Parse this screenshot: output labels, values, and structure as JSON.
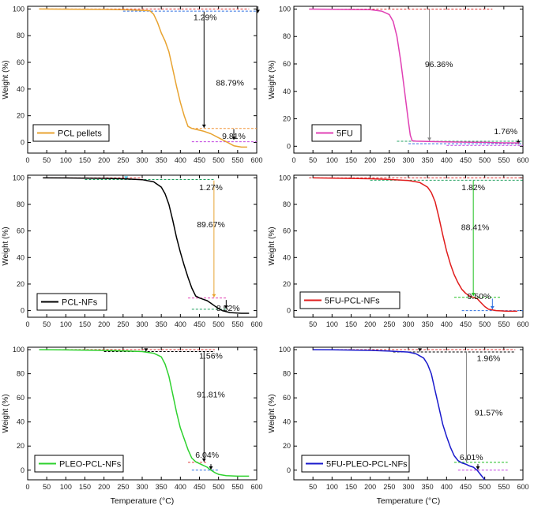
{
  "figure": {
    "ylabel": "Weight (%)",
    "xlabel": "Temperature (°C)"
  },
  "chart_data": [
    {
      "type": "line",
      "legend": "PCL pellets",
      "color": "#e8a330",
      "xlim": [
        0,
        600
      ],
      "ylim": [
        -8,
        102
      ],
      "xticks": [
        0,
        50,
        100,
        150,
        200,
        250,
        300,
        350,
        400,
        450,
        500,
        550,
        600
      ],
      "yticks": [
        0,
        20,
        40,
        60,
        80,
        100
      ],
      "ylabel": "Weight (%)",
      "xlabel": "",
      "x": [
        30,
        100,
        200,
        260,
        300,
        320,
        330,
        340,
        350,
        360,
        370,
        380,
        390,
        400,
        410,
        420,
        430,
        440,
        460,
        480,
        500,
        520,
        540,
        560,
        575
      ],
      "y": [
        100,
        99.9,
        99.7,
        99.4,
        99,
        98.7,
        96,
        90,
        82,
        76,
        68,
        55,
        42,
        30,
        20,
        12,
        10.5,
        9.8,
        8.5,
        6.5,
        3.5,
        0.5,
        -2.5,
        -3.5,
        -3.5
      ],
      "annotations": [
        {
          "text": "1.29%",
          "x": 465,
          "y": 94
        },
        {
          "text": "88.79%",
          "x": 530,
          "y": 45
        },
        {
          "text": "9.81%",
          "x": 540,
          "y": 5
        }
      ]
    },
    {
      "type": "line",
      "legend": "5FU",
      "color": "#e040b4",
      "xlim": [
        0,
        600
      ],
      "ylim": [
        -5,
        102
      ],
      "xticks": [
        0,
        50,
        100,
        150,
        200,
        250,
        300,
        350,
        400,
        450,
        500,
        550,
        600
      ],
      "yticks": [
        0,
        20,
        40,
        60,
        80,
        100
      ],
      "ylabel": "Weight (%)",
      "xlabel": "",
      "x": [
        40,
        100,
        200,
        230,
        250,
        260,
        270,
        280,
        290,
        300,
        305,
        310,
        320,
        350,
        400,
        450,
        500,
        550,
        590
      ],
      "y": [
        100,
        99.9,
        99.5,
        98.5,
        96,
        91,
        80,
        62,
        40,
        18,
        8,
        4,
        3.7,
        3.5,
        3.2,
        3,
        2.8,
        2.5,
        2.4
      ],
      "annotations": [
        {
          "text": "96.36%",
          "x": 380,
          "y": 60
        },
        {
          "text": "1.76%",
          "x": 555,
          "y": 11
        }
      ]
    },
    {
      "type": "line",
      "legend": "PCL-NFs",
      "color": "#000000",
      "xlim": [
        0,
        600
      ],
      "ylim": [
        -5,
        102
      ],
      "xticks": [
        0,
        50,
        100,
        150,
        200,
        250,
        300,
        350,
        400,
        450,
        500,
        550,
        600
      ],
      "yticks": [
        0,
        20,
        40,
        60,
        80,
        100
      ],
      "ylabel": "Weight (%)",
      "xlabel": "",
      "x": [
        40,
        100,
        200,
        250,
        300,
        330,
        350,
        360,
        370,
        380,
        390,
        400,
        410,
        420,
        430,
        440,
        450,
        460,
        470,
        480,
        490,
        500,
        510,
        530,
        560,
        580
      ],
      "y": [
        100,
        99.9,
        99.6,
        99.3,
        98.6,
        97,
        93,
        88,
        80,
        68,
        55,
        44,
        34,
        25,
        17,
        11,
        9.5,
        8.5,
        7.5,
        5.5,
        3.5,
        1.5,
        0,
        -1.5,
        -2,
        -2
      ],
      "annotations": [
        {
          "text": "1.27%",
          "x": 480,
          "y": 93
        },
        {
          "text": "89.67%",
          "x": 480,
          "y": 65
        },
        {
          "text": "8.52%",
          "x": 525,
          "y": 2
        }
      ]
    },
    {
      "type": "line",
      "legend": "5FU-PCL-NFs",
      "color": "#e01c1c",
      "xlim": [
        0,
        600
      ],
      "ylim": [
        -5,
        102
      ],
      "xticks": [
        50,
        100,
        150,
        200,
        250,
        300,
        350,
        400,
        450,
        500,
        550,
        600
      ],
      "yticks": [
        0,
        20,
        40,
        60,
        80,
        100
      ],
      "ylabel": "Weight (%)",
      "xlabel": "",
      "x": [
        50,
        100,
        200,
        250,
        300,
        330,
        350,
        360,
        370,
        380,
        390,
        400,
        410,
        420,
        430,
        440,
        450,
        460,
        470,
        480,
        490,
        500,
        510,
        530,
        560,
        585
      ],
      "y": [
        100,
        99.8,
        99.3,
        98.8,
        98,
        96.5,
        93,
        89,
        82,
        70,
        57,
        45,
        35,
        27,
        21,
        16,
        13,
        11,
        10,
        9,
        6,
        3,
        1,
        0,
        -0.5,
        -0.5
      ],
      "annotations": [
        {
          "text": "1.82%",
          "x": 470,
          "y": 93
        },
        {
          "text": "88.41%",
          "x": 475,
          "y": 63
        },
        {
          "text": "9.50%",
          "x": 485,
          "y": 11
        }
      ]
    },
    {
      "type": "line",
      "legend": "PLEO-PCL-NFs",
      "color": "#2ed12e",
      "xlim": [
        0,
        600
      ],
      "ylim": [
        -8,
        102
      ],
      "xticks": [
        0,
        50,
        100,
        150,
        200,
        250,
        300,
        350,
        400,
        450,
        500,
        550,
        600
      ],
      "yticks": [
        0,
        20,
        40,
        60,
        80,
        100
      ],
      "ylabel": "Weight (%)",
      "xlabel": "Temperature (°C)",
      "x": [
        30,
        100,
        200,
        250,
        300,
        330,
        350,
        360,
        370,
        380,
        390,
        400,
        410,
        420,
        430,
        440,
        450,
        460,
        470,
        480,
        490,
        500,
        520,
        550,
        580
      ],
      "y": [
        100,
        99.8,
        99.3,
        99,
        98.4,
        97,
        94,
        88,
        78,
        63,
        48,
        35,
        26,
        17,
        10,
        7,
        5.5,
        4,
        2.5,
        0,
        -2,
        -3.5,
        -4.5,
        -5,
        -5
      ],
      "annotations": [
        {
          "text": "1.56%",
          "x": 480,
          "y": 95
        },
        {
          "text": "91.81%",
          "x": 480,
          "y": 63
        },
        {
          "text": "6.04%",
          "x": 470,
          "y": 13
        }
      ]
    },
    {
      "type": "line",
      "legend": "5FU-PLEO-PCL-NFs",
      "color": "#1a1acc",
      "xlim": [
        0,
        600
      ],
      "ylim": [
        -8,
        102
      ],
      "xticks": [
        50,
        100,
        150,
        200,
        250,
        300,
        350,
        400,
        450,
        500,
        550,
        600
      ],
      "yticks": [
        0,
        20,
        40,
        60,
        80,
        100
      ],
      "ylabel": "Weight (%)",
      "xlabel": "Temperature (°C)",
      "x": [
        50,
        100,
        200,
        250,
        300,
        320,
        340,
        350,
        360,
        370,
        380,
        390,
        400,
        410,
        420,
        430,
        440,
        450,
        460,
        470,
        480,
        490,
        500
      ],
      "y": [
        100,
        99.9,
        99.4,
        98.8,
        98,
        96.5,
        93,
        88,
        80,
        66,
        52,
        38,
        28,
        19,
        12,
        8,
        6,
        5,
        3.5,
        2.5,
        0,
        -4,
        -8
      ],
      "annotations": [
        {
          "text": "1.96%",
          "x": 510,
          "y": 93
        },
        {
          "text": "91.57%",
          "x": 510,
          "y": 48
        },
        {
          "text": "6.01%",
          "x": 465,
          "y": 11
        }
      ]
    }
  ]
}
